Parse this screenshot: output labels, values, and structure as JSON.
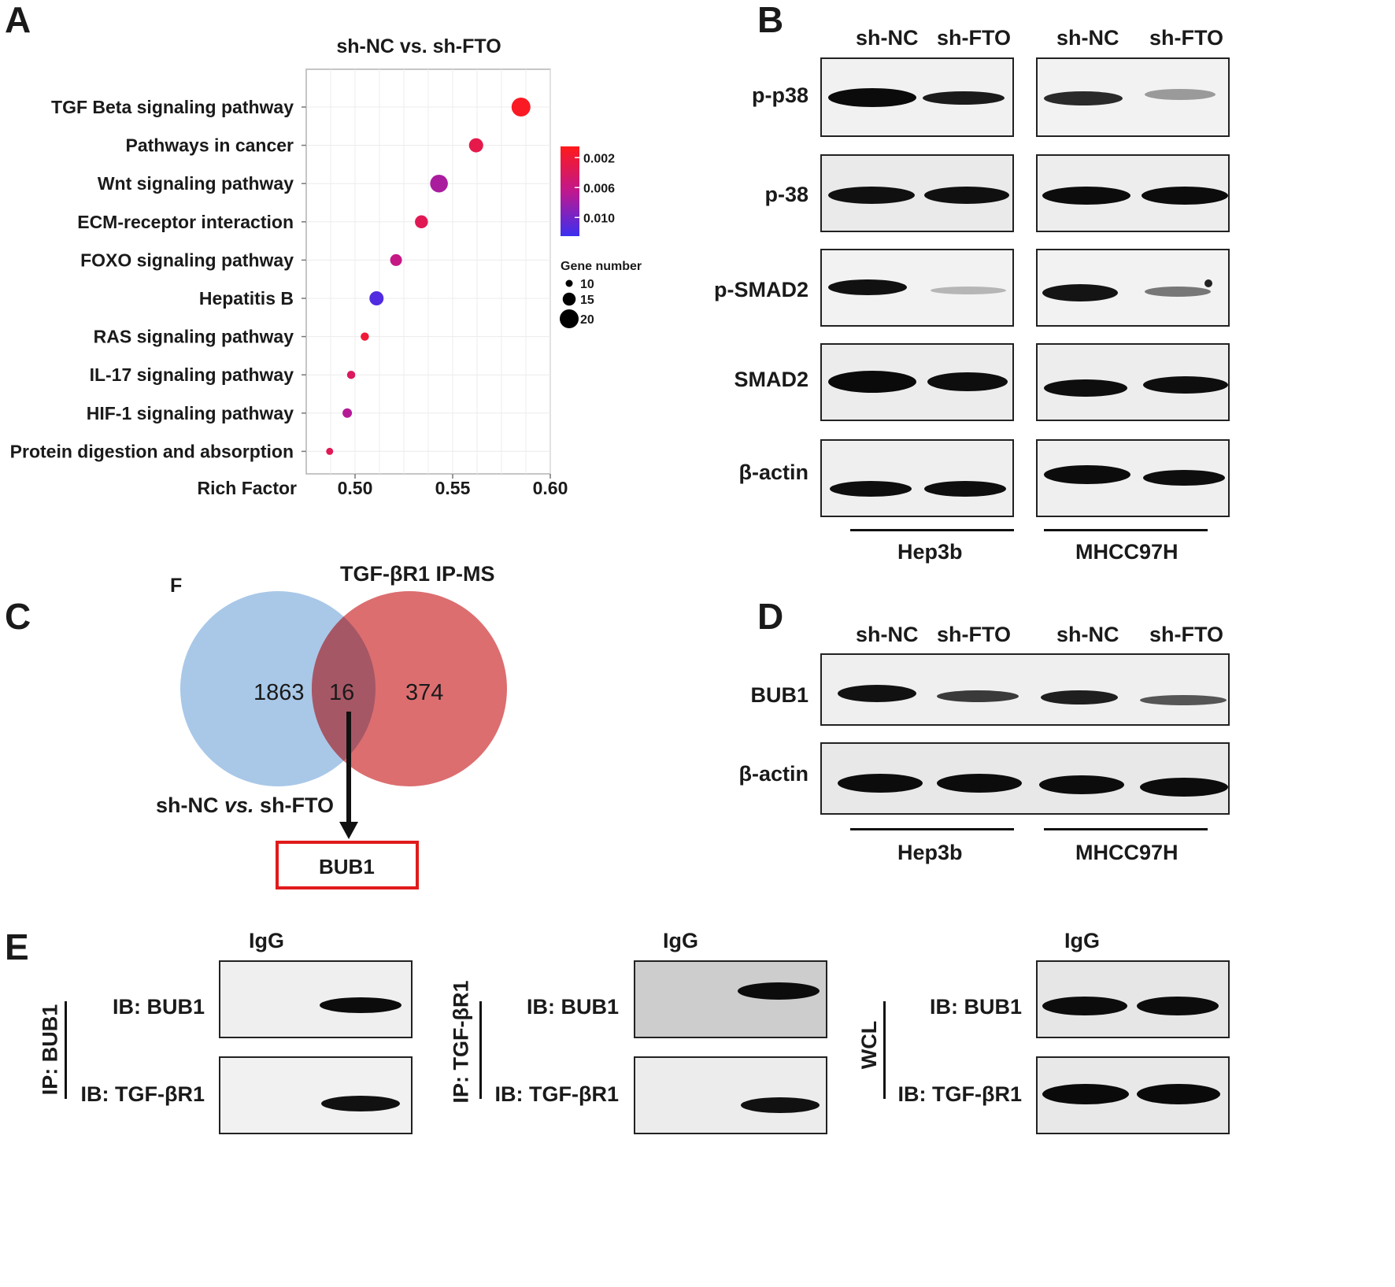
{
  "panels": {
    "A": "A",
    "B": "B",
    "C": "C",
    "D": "D",
    "E": "E"
  },
  "panel_a": {
    "colorbar_ticks": [
      "0.002",
      "0.006",
      "0.010"
    ],
    "colors": {
      "high": "#ff1a1a",
      "mid": "#c0188e",
      "low": "#3b2ff0"
    },
    "size_legend_title": "Gene number",
    "size_legend": [
      {
        "label": "10",
        "value": 10
      },
      {
        "label": "15",
        "value": 15
      },
      {
        "label": "20",
        "value": 20
      }
    ]
  },
  "chart_data": {
    "type": "scatter",
    "title": "sh-NC vs. sh-FTO",
    "xlabel": "Rich Factor",
    "ylabel": "",
    "xlim": [
      0.475,
      0.6
    ],
    "xticks": [
      "0.50",
      "0.55",
      "0.60"
    ],
    "grid": true,
    "legend": "right",
    "categories": [
      "TGF Beta signaling pathway",
      "Pathways in cancer",
      "Wnt signaling pathway",
      "ECM-receptor interaction",
      "FOXO signaling pathway",
      "Hepatitis B",
      "RAS signaling pathway",
      "IL-17 signaling pathway",
      "HIF-1 signaling pathway",
      "Protein digestion and absorption"
    ],
    "points": [
      {
        "x": 0.585,
        "size": 20,
        "pvalue": 0.001
      },
      {
        "x": 0.562,
        "size": 16,
        "pvalue": 0.003
      },
      {
        "x": 0.543,
        "size": 19,
        "pvalue": 0.0075
      },
      {
        "x": 0.534,
        "size": 15,
        "pvalue": 0.0035
      },
      {
        "x": 0.521,
        "size": 14,
        "pvalue": 0.006
      },
      {
        "x": 0.511,
        "size": 16,
        "pvalue": 0.0115
      },
      {
        "x": 0.505,
        "size": 11,
        "pvalue": 0.002
      },
      {
        "x": 0.498,
        "size": 11,
        "pvalue": 0.004
      },
      {
        "x": 0.496,
        "size": 12,
        "pvalue": 0.007
      },
      {
        "x": 0.487,
        "size": 10,
        "pvalue": 0.0035
      }
    ]
  },
  "panel_b": {
    "col_labels": [
      "sh-NC",
      "sh-FTO",
      "sh-NC",
      "sh-FTO"
    ],
    "rows": [
      "p-p38",
      "p-38",
      "p-SMAD2",
      "SMAD2",
      "β-actin"
    ],
    "groups": [
      "Hep3b",
      "MHCC97H"
    ]
  },
  "panel_c": {
    "f_label": "F",
    "set_right": "TGF-βR1 IP-MS",
    "set_left_pre": "sh-NC ",
    "set_left_vs": "vs.",
    "set_left_post": " sh-FTO",
    "left_only": "1863",
    "overlap": "16",
    "right_only": "374",
    "result": "BUB1",
    "colors": {
      "left": "#a9c8e8",
      "right": "#dc6e70",
      "overlap": "#a65765",
      "box": "#e01b1b"
    }
  },
  "panel_d": {
    "col_labels": [
      "sh-NC",
      "sh-FTO",
      "sh-NC",
      "sh-FTO"
    ],
    "rows": [
      "BUB1",
      "β-actin"
    ],
    "groups": [
      "Hep3b",
      "MHCC97H"
    ]
  },
  "panel_e": {
    "groups": [
      {
        "side_label": "IP: BUB1",
        "igg": "IgG",
        "rows": [
          "IB: BUB1",
          "IB: TGF-βR1"
        ]
      },
      {
        "side_label": "IP: TGF-βR1",
        "igg": "IgG",
        "rows": [
          "IB: BUB1",
          "IB: TGF-βR1"
        ]
      },
      {
        "side_label": "WCL",
        "igg": "IgG",
        "rows": [
          "IB: BUB1",
          "IB: TGF-βR1"
        ]
      }
    ]
  }
}
